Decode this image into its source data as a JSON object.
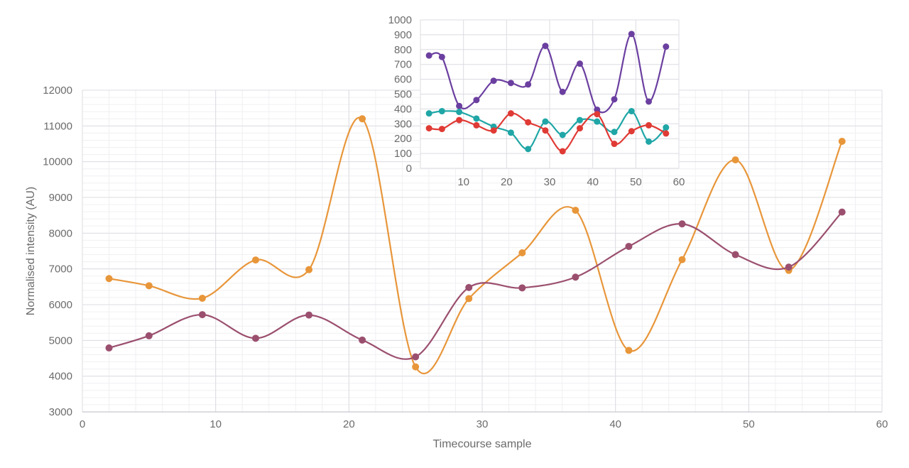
{
  "chart_data": [
    {
      "type": "line",
      "title": "",
      "xlabel": "Timecourse sample",
      "ylabel": "Normalised intensity (AU)",
      "xlim": [
        0,
        60
      ],
      "ylim": [
        3000,
        12000
      ],
      "x_ticks": [
        "0",
        "10",
        "20",
        "30",
        "40",
        "50",
        "60"
      ],
      "y_ticks": [
        "3000",
        "4000",
        "5000",
        "6000",
        "7000",
        "8000",
        "9000",
        "10000",
        "11000",
        "12000"
      ],
      "grid": true,
      "smooth": true,
      "series": [
        {
          "color": "#E8963A",
          "x": [
            2,
            5,
            9,
            13,
            17,
            21,
            25,
            29,
            33,
            37,
            41,
            45,
            49,
            53,
            57
          ],
          "values": [
            6730,
            6530,
            6180,
            7250,
            6980,
            11200,
            4260,
            6170,
            7450,
            8640,
            4720,
            7260,
            10050,
            6960,
            10570
          ]
        },
        {
          "color": "#9B4F6E",
          "x": [
            2,
            5,
            9,
            13,
            17,
            21,
            25,
            29,
            33,
            37,
            41,
            45,
            49,
            53,
            57
          ],
          "values": [
            4790,
            5130,
            5720,
            5060,
            5710,
            5010,
            4540,
            6480,
            6470,
            6770,
            7630,
            8260,
            7400,
            7050,
            8590
          ]
        }
      ]
    },
    {
      "type": "line",
      "title": "",
      "xlabel": "",
      "ylabel": "",
      "xlim": [
        0,
        60
      ],
      "ylim": [
        0,
        1000
      ],
      "x_ticks": [
        "10",
        "20",
        "30",
        "40",
        "50",
        "60"
      ],
      "y_ticks": [
        "0",
        "100",
        "200",
        "300",
        "400",
        "500",
        "600",
        "700",
        "800",
        "900",
        "1000"
      ],
      "grid": true,
      "smooth": true,
      "series": [
        {
          "color": "#6B3FA0",
          "x": [
            2,
            5,
            9,
            13,
            17,
            21,
            25,
            29,
            33,
            37,
            41,
            45,
            49,
            53,
            57
          ],
          "values": [
            760,
            750,
            420,
            460,
            590,
            575,
            565,
            825,
            515,
            705,
            395,
            465,
            905,
            450,
            820
          ]
        },
        {
          "color": "#20A6A6",
          "x": [
            2,
            5,
            9,
            13,
            17,
            21,
            25,
            29,
            33,
            37,
            41,
            45,
            49,
            53,
            57
          ],
          "values": [
            370,
            385,
            380,
            335,
            280,
            240,
            130,
            315,
            225,
            325,
            315,
            245,
            385,
            180,
            275
          ]
        },
        {
          "color": "#E03A35",
          "x": [
            2,
            5,
            9,
            13,
            17,
            21,
            25,
            29,
            33,
            37,
            41,
            45,
            49,
            53,
            57
          ],
          "values": [
            270,
            265,
            325,
            290,
            255,
            370,
            310,
            255,
            115,
            270,
            365,
            165,
            250,
            290,
            235
          ]
        }
      ]
    }
  ]
}
